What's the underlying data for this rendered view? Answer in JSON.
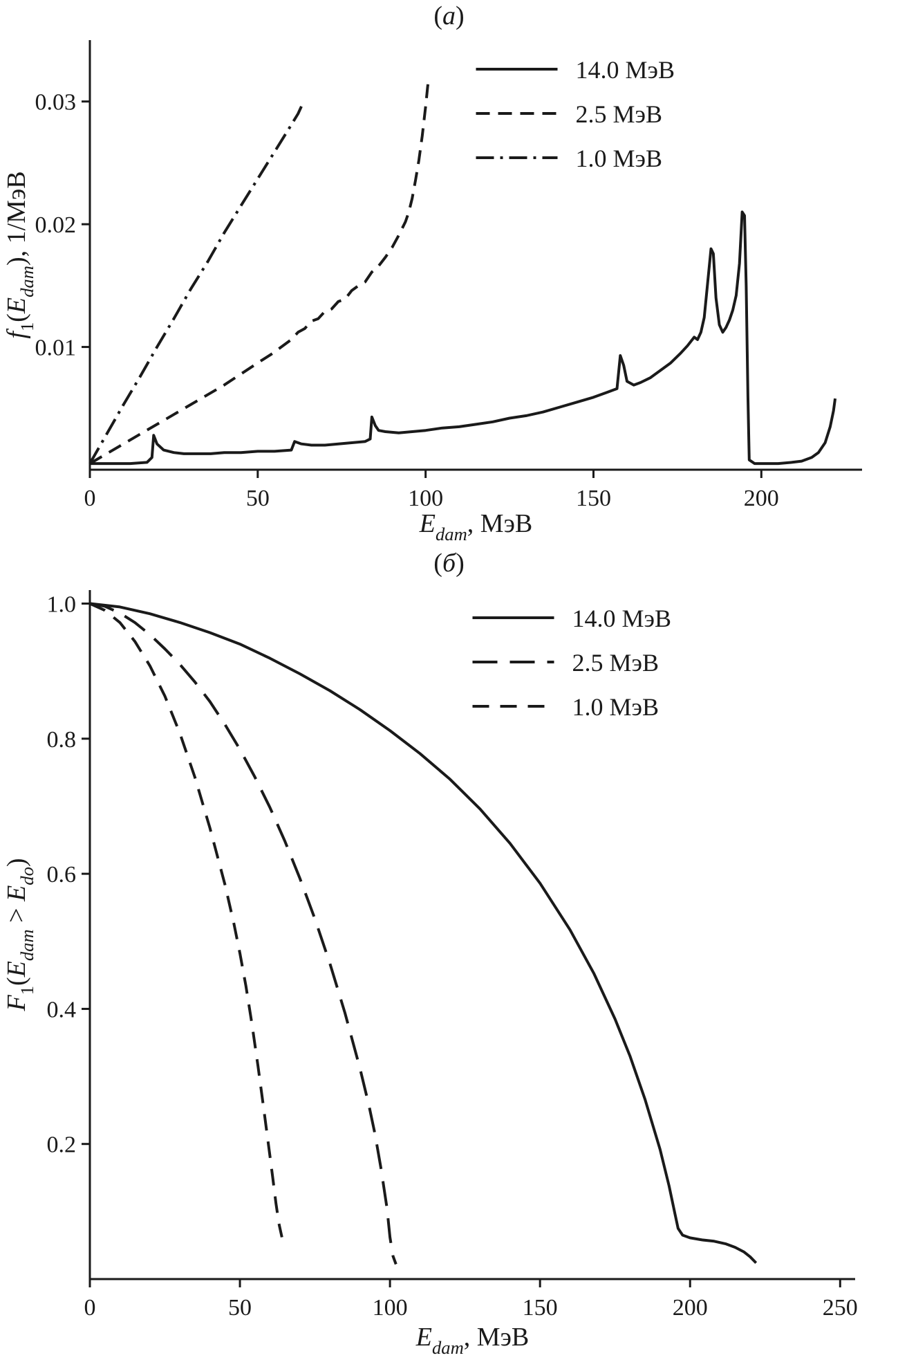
{
  "page": {
    "background": "#ffffff",
    "ink": "#1a1a1a"
  },
  "chart_data": [
    {
      "id": "a",
      "type": "line",
      "title_rich": [
        {
          "t": "("
        },
        {
          "t": "a",
          "i": true
        },
        {
          "t": ")"
        }
      ],
      "xlabel_rich": [
        {
          "t": "E",
          "i": true
        },
        {
          "t": "dam",
          "i": true,
          "sub": true
        },
        {
          "t": ", МэВ"
        }
      ],
      "ylabel_rich": [
        {
          "t": "f",
          "i": true
        },
        {
          "t": "1",
          "sub": true
        },
        {
          "t": "("
        },
        {
          "t": "E",
          "i": true
        },
        {
          "t": "dam",
          "i": true,
          "sub": true
        },
        {
          "t": "), 1/МэВ"
        }
      ],
      "xlim": [
        0,
        230
      ],
      "ylim": [
        0,
        0.035
      ],
      "xticks": {
        "values": [
          0,
          50,
          100,
          150,
          200
        ],
        "labels": [
          "0",
          "50",
          "100",
          "150",
          "200"
        ]
      },
      "yticks": {
        "values": [
          0.01,
          0.02,
          0.03
        ],
        "labels": [
          "0.01",
          "0.02",
          "0.03"
        ]
      },
      "grid": false,
      "legend": {
        "position": "top-right-inside",
        "entries": [
          {
            "label": "14.0 МэВ",
            "dash": "solid"
          },
          {
            "label": "2.5 МэВ",
            "dash": "dash"
          },
          {
            "label": "1.0 МэВ",
            "dash": "dashdot"
          }
        ]
      },
      "series": [
        {
          "name": "14.0 МэВ",
          "dash": "solid",
          "points": [
            [
              0,
              0.0005
            ],
            [
              6,
              0.0005
            ],
            [
              12,
              0.0005
            ],
            [
              17,
              0.0006
            ],
            [
              18.5,
              0.001
            ],
            [
              19,
              0.0028
            ],
            [
              20,
              0.0021
            ],
            [
              22,
              0.0016
            ],
            [
              25,
              0.0014
            ],
            [
              28,
              0.0013
            ],
            [
              32,
              0.0013
            ],
            [
              36,
              0.0013
            ],
            [
              40,
              0.0014
            ],
            [
              45,
              0.0014
            ],
            [
              50,
              0.0015
            ],
            [
              55,
              0.0015
            ],
            [
              60,
              0.0016
            ],
            [
              61,
              0.0023
            ],
            [
              63,
              0.0021
            ],
            [
              66,
              0.002
            ],
            [
              70,
              0.002
            ],
            [
              74,
              0.0021
            ],
            [
              78,
              0.0022
            ],
            [
              82,
              0.0023
            ],
            [
              83.5,
              0.0025
            ],
            [
              84,
              0.0043
            ],
            [
              85,
              0.0036
            ],
            [
              86,
              0.0032
            ],
            [
              88,
              0.0031
            ],
            [
              92,
              0.003
            ],
            [
              96,
              0.0031
            ],
            [
              100,
              0.0032
            ],
            [
              105,
              0.0034
            ],
            [
              110,
              0.0035
            ],
            [
              115,
              0.0037
            ],
            [
              120,
              0.0039
            ],
            [
              125,
              0.0042
            ],
            [
              130,
              0.0044
            ],
            [
              135,
              0.0047
            ],
            [
              140,
              0.0051
            ],
            [
              145,
              0.0055
            ],
            [
              150,
              0.0059
            ],
            [
              154,
              0.0063
            ],
            [
              157,
              0.0066
            ],
            [
              158,
              0.0093
            ],
            [
              159,
              0.0085
            ],
            [
              160,
              0.0072
            ],
            [
              162,
              0.0069
            ],
            [
              164,
              0.0071
            ],
            [
              167,
              0.0075
            ],
            [
              170,
              0.0081
            ],
            [
              173,
              0.0087
            ],
            [
              176,
              0.0095
            ],
            [
              178,
              0.0101
            ],
            [
              180,
              0.0108
            ],
            [
              181,
              0.0106
            ],
            [
              182,
              0.0112
            ],
            [
              183,
              0.0124
            ],
            [
              184,
              0.0152
            ],
            [
              185,
              0.018
            ],
            [
              185.7,
              0.0176
            ],
            [
              186.5,
              0.014
            ],
            [
              187.5,
              0.0118
            ],
            [
              188.5,
              0.0112
            ],
            [
              189.5,
              0.0116
            ],
            [
              190.5,
              0.0122
            ],
            [
              191.5,
              0.013
            ],
            [
              192.5,
              0.0142
            ],
            [
              193.5,
              0.0168
            ],
            [
              194.3,
              0.021
            ],
            [
              195,
              0.0207
            ],
            [
              195.5,
              0.015
            ],
            [
              196,
              0.006
            ],
            [
              196.4,
              0.0008
            ],
            [
              198,
              0.0005
            ],
            [
              201,
              0.0005
            ],
            [
              205,
              0.0005
            ],
            [
              209,
              0.0006
            ],
            [
              212,
              0.0007
            ],
            [
              215,
              0.001
            ],
            [
              217,
              0.0014
            ],
            [
              219,
              0.0022
            ],
            [
              220.5,
              0.0035
            ],
            [
              221.5,
              0.0048
            ],
            [
              222,
              0.0058
            ]
          ]
        },
        {
          "name": "2.5 МэВ",
          "dash": "dash",
          "points": [
            [
              0,
              0.0005
            ],
            [
              5,
              0.0013
            ],
            [
              10,
              0.0021
            ],
            [
              15,
              0.0029
            ],
            [
              20,
              0.0037
            ],
            [
              25,
              0.0045
            ],
            [
              30,
              0.0053
            ],
            [
              35,
              0.0061
            ],
            [
              40,
              0.0069
            ],
            [
              45,
              0.0078
            ],
            [
              50,
              0.0087
            ],
            [
              54,
              0.0094
            ],
            [
              57,
              0.01
            ],
            [
              60,
              0.0106
            ],
            [
              62,
              0.0112
            ],
            [
              64,
              0.0115
            ],
            [
              66,
              0.0121
            ],
            [
              68,
              0.0123
            ],
            [
              70,
              0.0129
            ],
            [
              72,
              0.0131
            ],
            [
              74,
              0.0137
            ],
            [
              76,
              0.0139
            ],
            [
              78,
              0.0146
            ],
            [
              80,
              0.015
            ],
            [
              82,
              0.0153
            ],
            [
              84,
              0.0161
            ],
            [
              86,
              0.0166
            ],
            [
              88,
              0.0173
            ],
            [
              90,
              0.0181
            ],
            [
              92,
              0.0191
            ],
            [
              94,
              0.0202
            ],
            [
              95,
              0.021
            ],
            [
              96,
              0.0221
            ],
            [
              97,
              0.0236
            ],
            [
              98,
              0.0252
            ],
            [
              99,
              0.0272
            ],
            [
              100,
              0.0296
            ],
            [
              100.6,
              0.0312
            ],
            [
              101,
              0.032
            ]
          ]
        },
        {
          "name": "1.0 МэВ",
          "dash": "dashdot",
          "points": [
            [
              0,
              0.0005
            ],
            [
              5,
              0.0029
            ],
            [
              10,
              0.0053
            ],
            [
              15,
              0.0076
            ],
            [
              20,
              0.01
            ],
            [
              25,
              0.0123
            ],
            [
              30,
              0.0147
            ],
            [
              35,
              0.0169
            ],
            [
              40,
              0.0193
            ],
            [
              45,
              0.0215
            ],
            [
              50,
              0.0237
            ],
            [
              55,
              0.0259
            ],
            [
              60,
              0.0281
            ],
            [
              62,
              0.029
            ],
            [
              63,
              0.0296
            ]
          ]
        }
      ]
    },
    {
      "id": "b",
      "type": "line",
      "title_rich": [
        {
          "t": "("
        },
        {
          "t": "б",
          "i": true
        },
        {
          "t": ")"
        }
      ],
      "xlabel_rich": [
        {
          "t": "E",
          "i": true
        },
        {
          "t": "dam",
          "i": true,
          "sub": true
        },
        {
          "t": ", МэВ"
        }
      ],
      "ylabel_rich": [
        {
          "t": "F",
          "i": true
        },
        {
          "t": "1",
          "sub": true
        },
        {
          "t": "("
        },
        {
          "t": "E",
          "i": true
        },
        {
          "t": "dam",
          "i": true,
          "sub": true
        },
        {
          "t": " > "
        },
        {
          "t": "E",
          "i": true
        },
        {
          "t": "do",
          "i": true,
          "sub": true
        },
        {
          "t": ")"
        }
      ],
      "xlim": [
        0,
        255
      ],
      "ylim": [
        0,
        1.02
      ],
      "xticks": {
        "values": [
          0,
          50,
          100,
          150,
          200,
          250
        ],
        "labels": [
          "0",
          "50",
          "100",
          "150",
          "200",
          "250"
        ]
      },
      "yticks": {
        "values": [
          0.2,
          0.4,
          0.6,
          0.8,
          1.0
        ],
        "labels": [
          "0.2",
          "0.4",
          "0.6",
          "0.8",
          "1.0"
        ]
      },
      "grid": false,
      "legend": {
        "position": "top-right-inside",
        "entries": [
          {
            "label": "14.0 МэВ",
            "dash": "solid"
          },
          {
            "label": "2.5 МэВ",
            "dash": "longdash"
          },
          {
            "label": "1.0 МэВ",
            "dash": "mediumdash"
          }
        ]
      },
      "series": [
        {
          "name": "14.0 МэВ",
          "dash": "solid",
          "points": [
            [
              0,
              1.0
            ],
            [
              10,
              0.995
            ],
            [
              20,
              0.985
            ],
            [
              30,
              0.972
            ],
            [
              40,
              0.957
            ],
            [
              50,
              0.94
            ],
            [
              60,
              0.919
            ],
            [
              70,
              0.896
            ],
            [
              80,
              0.871
            ],
            [
              90,
              0.843
            ],
            [
              100,
              0.812
            ],
            [
              110,
              0.778
            ],
            [
              120,
              0.74
            ],
            [
              130,
              0.696
            ],
            [
              140,
              0.645
            ],
            [
              150,
              0.586
            ],
            [
              160,
              0.517
            ],
            [
              168,
              0.452
            ],
            [
              175,
              0.385
            ],
            [
              180,
              0.33
            ],
            [
              185,
              0.266
            ],
            [
              190,
              0.192
            ],
            [
              193,
              0.138
            ],
            [
              195,
              0.096
            ],
            [
              196,
              0.075
            ],
            [
              197.5,
              0.065
            ],
            [
              200,
              0.061
            ],
            [
              204,
              0.058
            ],
            [
              208,
              0.056
            ],
            [
              212,
              0.052
            ],
            [
              215,
              0.047
            ],
            [
              218,
              0.04
            ],
            [
              220,
              0.033
            ],
            [
              222,
              0.024
            ]
          ]
        },
        {
          "name": "2.5 МэВ",
          "dash": "longdash",
          "points": [
            [
              0,
              1.0
            ],
            [
              5,
              0.996
            ],
            [
              10,
              0.986
            ],
            [
              15,
              0.972
            ],
            [
              20,
              0.954
            ],
            [
              25,
              0.933
            ],
            [
              30,
              0.91
            ],
            [
              35,
              0.884
            ],
            [
              40,
              0.855
            ],
            [
              45,
              0.821
            ],
            [
              50,
              0.784
            ],
            [
              55,
              0.743
            ],
            [
              60,
              0.698
            ],
            [
              65,
              0.648
            ],
            [
              70,
              0.593
            ],
            [
              75,
              0.533
            ],
            [
              80,
              0.467
            ],
            [
              85,
              0.394
            ],
            [
              90,
              0.312
            ],
            [
              93,
              0.257
            ],
            [
              95,
              0.215
            ],
            [
              97,
              0.164
            ],
            [
              99,
              0.105
            ],
            [
              100,
              0.062
            ],
            [
              101,
              0.034
            ],
            [
              102,
              0.022
            ]
          ]
        },
        {
          "name": "1.0 МэВ",
          "dash": "mediumdash",
          "points": [
            [
              0,
              1.0
            ],
            [
              5,
              0.99
            ],
            [
              10,
              0.972
            ],
            [
              15,
              0.944
            ],
            [
              20,
              0.908
            ],
            [
              25,
              0.863
            ],
            [
              30,
              0.808
            ],
            [
              35,
              0.743
            ],
            [
              40,
              0.668
            ],
            [
              45,
              0.584
            ],
            [
              48,
              0.526
            ],
            [
              50,
              0.482
            ],
            [
              52,
              0.434
            ],
            [
              54,
              0.378
            ],
            [
              56,
              0.316
            ],
            [
              58,
              0.25
            ],
            [
              60,
              0.182
            ],
            [
              61,
              0.148
            ],
            [
              62,
              0.112
            ],
            [
              63,
              0.082
            ],
            [
              64,
              0.062
            ]
          ]
        }
      ]
    }
  ]
}
